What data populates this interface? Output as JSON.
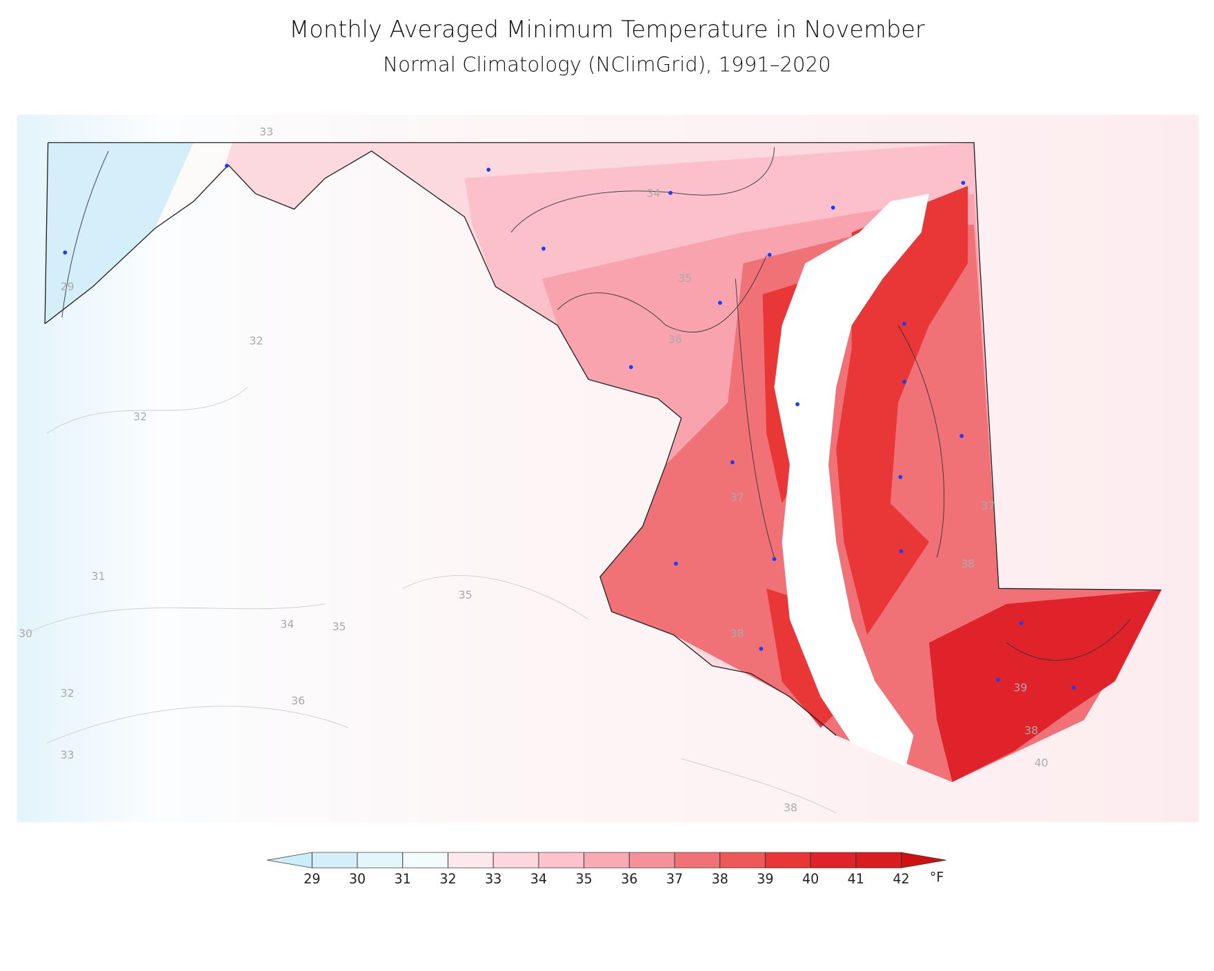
{
  "title": "Monthly Averaged Minimum Temperature in November",
  "subtitle": "Normal Climatology (NClimGrid), 1991–2020",
  "colorbar": {
    "ticks": [
      29,
      30,
      31,
      32,
      33,
      34,
      35,
      36,
      37,
      38,
      39,
      40,
      41,
      42
    ],
    "colors": [
      "#cbeefa",
      "#d4effa",
      "#e3f6fc",
      "#f2fcfd",
      "#fde8ee",
      "#fdd6de",
      "#fcc3cc",
      "#f9aab4",
      "#f59198",
      "#f07276",
      "#ee5859",
      "#e93637",
      "#e0232a",
      "#d81c1f",
      "#cf1010"
    ],
    "unit": "°F"
  },
  "contour_labels": [
    "33",
    "34",
    "35",
    "36",
    "29",
    "32",
    "32",
    "31",
    "30",
    "34",
    "35",
    "35",
    "36",
    "32",
    "33",
    "37",
    "38",
    "38",
    "38",
    "39",
    "40",
    "38",
    "37"
  ]
}
